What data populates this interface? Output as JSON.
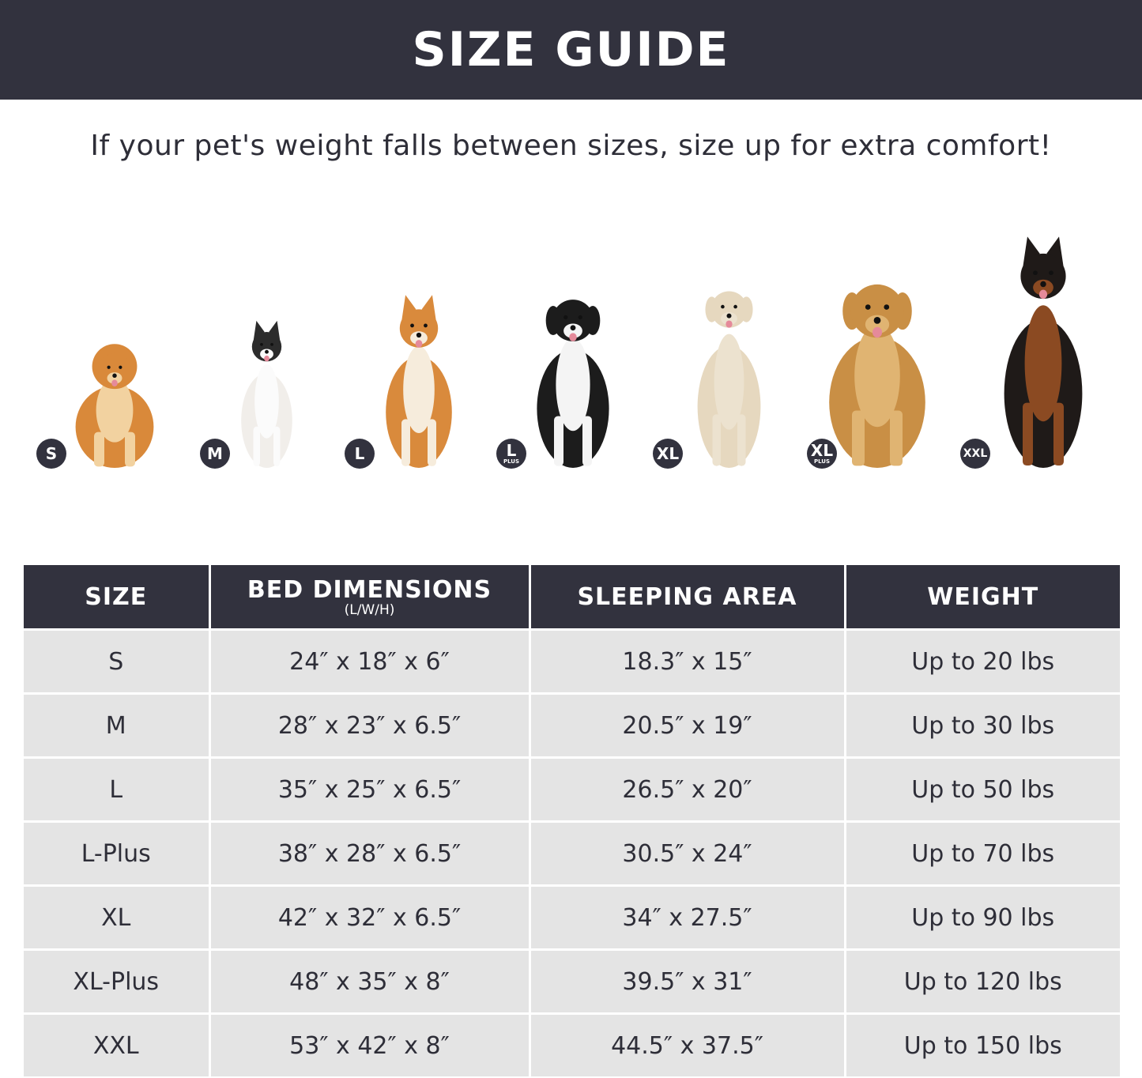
{
  "header": {
    "title": "SIZE GUIDE"
  },
  "subtitle": "If your pet's weight falls between sizes, size up for extra comfort!",
  "dogs": [
    {
      "badge": "S",
      "badge_sub": "",
      "breed_icon": "pomeranian"
    },
    {
      "badge": "M",
      "badge_sub": "",
      "breed_icon": "french-bulldog"
    },
    {
      "badge": "L",
      "badge_sub": "",
      "breed_icon": "shiba-inu"
    },
    {
      "badge": "L",
      "badge_sub": "PLUS",
      "breed_icon": "border-collie"
    },
    {
      "badge": "XL",
      "badge_sub": "",
      "breed_icon": "labrador"
    },
    {
      "badge": "XL",
      "badge_sub": "PLUS",
      "breed_icon": "golden-retriever"
    },
    {
      "badge": "XXL",
      "badge_sub": "",
      "breed_icon": "doberman"
    }
  ],
  "table": {
    "headers": [
      {
        "label": "SIZE",
        "sub": ""
      },
      {
        "label": "BED DIMENSIONS",
        "sub": "(L/W/H)"
      },
      {
        "label": "SLEEPING AREA",
        "sub": ""
      },
      {
        "label": "WEIGHT",
        "sub": ""
      }
    ],
    "rows": [
      [
        "S",
        "24″ x 18″ x 6″",
        "18.3″ x 15″",
        "Up to 20 lbs"
      ],
      [
        "M",
        "28″ x 23″ x 6.5″",
        "20.5″ x 19″",
        "Up to 30 lbs"
      ],
      [
        "L",
        "35″ x 25″ x 6.5″",
        "26.5″ x 20″",
        "Up to 50 lbs"
      ],
      [
        "L-Plus",
        "38″ x 28″ x 6.5″",
        "30.5″ x 24″",
        "Up to 70 lbs"
      ],
      [
        "XL",
        "42″ x 32″ x 6.5″",
        "34″ x 27.5″",
        "Up to 90 lbs"
      ],
      [
        "XL-Plus",
        "48″ x 35″ x 8″",
        "39.5″ x 31″",
        "Up to 120 lbs"
      ],
      [
        "XXL",
        "53″ x 42″ x 8″",
        "44.5″ x 37.5″",
        "Up to 150 lbs"
      ]
    ]
  },
  "colors": {
    "dark": "#32323e",
    "row_bg": "#e4e4e4",
    "text": "#2e2e38"
  }
}
